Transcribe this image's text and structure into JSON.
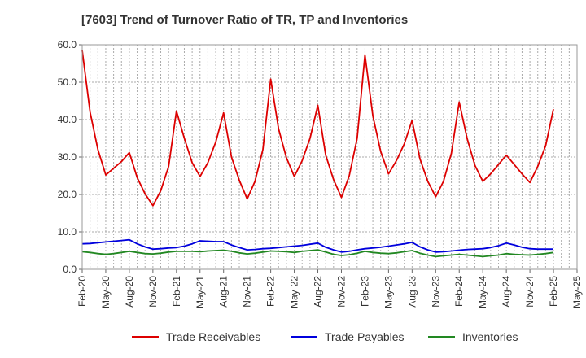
{
  "chart_data": {
    "type": "line",
    "title": "[7603]  Trend of Turnover Ratio of TR, TP and Inventories",
    "xlabel": "",
    "ylabel": "",
    "ylim": [
      0,
      60
    ],
    "yticks": [
      "0.0",
      "10.0",
      "20.0",
      "30.0",
      "40.0",
      "50.0",
      "60.0"
    ],
    "xticks": [
      "Feb-20",
      "May-20",
      "Aug-20",
      "Nov-20",
      "Feb-21",
      "May-21",
      "Aug-21",
      "Nov-21",
      "Feb-22",
      "May-22",
      "Aug-22",
      "Nov-22",
      "Feb-23",
      "May-23",
      "Aug-23",
      "Nov-23",
      "Feb-24",
      "May-24",
      "Aug-24",
      "Nov-24",
      "Feb-25",
      "May-25"
    ],
    "x_start": "Feb-20",
    "grid": true,
    "legend_position": "bottom",
    "series": [
      {
        "name": "Trade Receivables",
        "color": "#dd0000",
        "values": [
          58.5,
          42,
          32,
          25.2,
          27,
          28.8,
          31.2,
          24.5,
          20.2,
          17.0,
          21.0,
          27.5,
          42.3,
          35,
          28.5,
          24.8,
          28.5,
          34,
          41.8,
          30,
          23.8,
          18.8,
          23.5,
          32,
          50.8,
          37.5,
          29.8,
          24.8,
          29,
          35,
          43.8,
          30.5,
          24,
          19.2,
          25,
          35,
          57.3,
          41,
          31.5,
          25.5,
          29,
          33.5,
          39.8,
          29.5,
          23.5,
          19.4,
          23.5,
          31,
          44.7,
          35,
          27.8,
          23.5,
          25.5,
          28,
          30.5,
          28,
          25.5,
          23.2,
          27.5,
          33,
          42.8
        ]
      },
      {
        "name": "Trade Payables",
        "color": "#0000dd",
        "values": [
          6.8,
          6.9,
          7.1,
          7.3,
          7.5,
          7.7,
          7.9,
          6.8,
          6.0,
          5.4,
          5.5,
          5.7,
          5.8,
          6.2,
          6.8,
          7.6,
          7.5,
          7.4,
          7.4,
          6.5,
          5.8,
          5.2,
          5.3,
          5.5,
          5.6,
          5.8,
          6.0,
          6.2,
          6.4,
          6.7,
          7.0,
          5.9,
          5.2,
          4.6,
          4.8,
          5.2,
          5.5,
          5.7,
          5.9,
          6.2,
          6.5,
          6.8,
          7.2,
          6.0,
          5.2,
          4.6,
          4.7,
          4.9,
          5.1,
          5.3,
          5.4,
          5.5,
          5.8,
          6.3,
          7.0,
          6.5,
          5.9,
          5.5,
          5.4,
          5.4,
          5.4
        ]
      },
      {
        "name": "Inventories",
        "color": "#228822",
        "values": [
          4.7,
          4.5,
          4.2,
          4.0,
          4.2,
          4.5,
          4.8,
          4.5,
          4.2,
          4.1,
          4.3,
          4.6,
          4.8,
          4.8,
          4.8,
          4.7,
          4.9,
          5.0,
          5.1,
          4.8,
          4.4,
          4.1,
          4.3,
          4.6,
          4.9,
          4.8,
          4.7,
          4.5,
          4.8,
          5.0,
          5.2,
          4.6,
          4.0,
          3.7,
          3.9,
          4.3,
          4.8,
          4.5,
          4.3,
          4.2,
          4.4,
          4.7,
          5.0,
          4.3,
          3.8,
          3.4,
          3.6,
          3.8,
          4.0,
          3.8,
          3.6,
          3.4,
          3.6,
          3.8,
          4.2,
          4.0,
          3.9,
          3.8,
          4.0,
          4.2,
          4.5
        ]
      }
    ]
  }
}
